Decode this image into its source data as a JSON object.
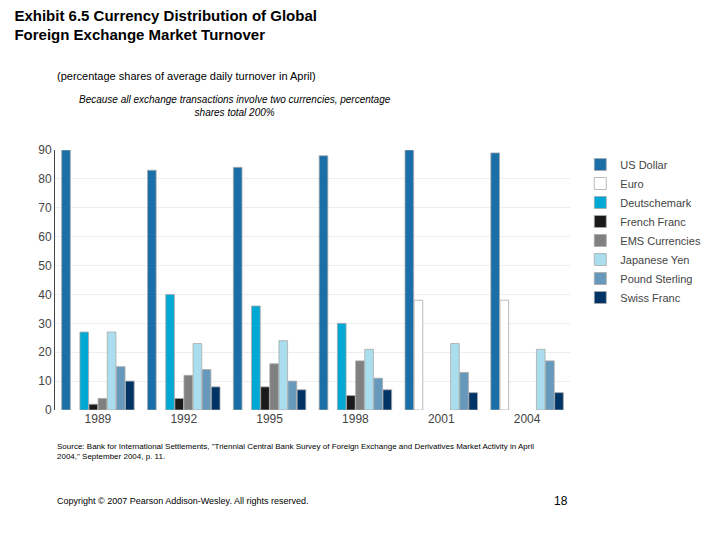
{
  "chart_data": {
    "type": "bar",
    "title": "Exhibit 6.5 Currency Distribution of Global\nForeign Exchange Market Turnover",
    "subtitle": "(percentage shares of average daily turnover in April)",
    "categories": [
      "1989",
      "1992",
      "1995",
      "1998",
      "2001",
      "2004"
    ],
    "series": [
      {
        "name": "US Dollar",
        "color": "#1a6fa8",
        "values": [
          90,
          83,
          84,
          88,
          90,
          89
        ]
      },
      {
        "name": "Euro",
        "color": "#ffffff",
        "values": [
          null,
          null,
          null,
          null,
          38,
          38
        ]
      },
      {
        "name": "Deutschemark",
        "color": "#00a8d4",
        "values": [
          27,
          40,
          36,
          30,
          null,
          null
        ]
      },
      {
        "name": "French Franc",
        "color": "#1a1a1a",
        "values": [
          2,
          4,
          8,
          5,
          null,
          null
        ]
      },
      {
        "name": "EMS Currencies",
        "color": "#808080",
        "values": [
          4,
          12,
          16,
          17,
          null,
          null
        ]
      },
      {
        "name": "Japanese Yen",
        "color": "#aaddee",
        "values": [
          27,
          23,
          24,
          21,
          23,
          21
        ]
      },
      {
        "name": "Pound Sterling",
        "color": "#6699bb",
        "values": [
          15,
          14,
          10,
          11,
          13,
          17
        ]
      },
      {
        "name": "Swiss Franc",
        "color": "#003366",
        "values": [
          10,
          8,
          7,
          7,
          6,
          6
        ]
      }
    ],
    "ylim": [
      0,
      90
    ],
    "yticks": [
      0,
      10,
      20,
      30,
      40,
      50,
      60,
      70,
      80,
      90
    ],
    "grid": true,
    "legend": "upper right",
    "annotations": [
      "Because all exchange transactions involve two currencies, percentage\nshares total 200%",
      "Source: Bank for International Settlements, \"Triennial Central Bank Survey of Foreign Exchange and Derivatives Market Activity in April\n2004,\" September 2004, p. 11.",
      "Copyright © 2007 Pearson Addison-Wesley. All rights reserved.",
      "18"
    ]
  }
}
